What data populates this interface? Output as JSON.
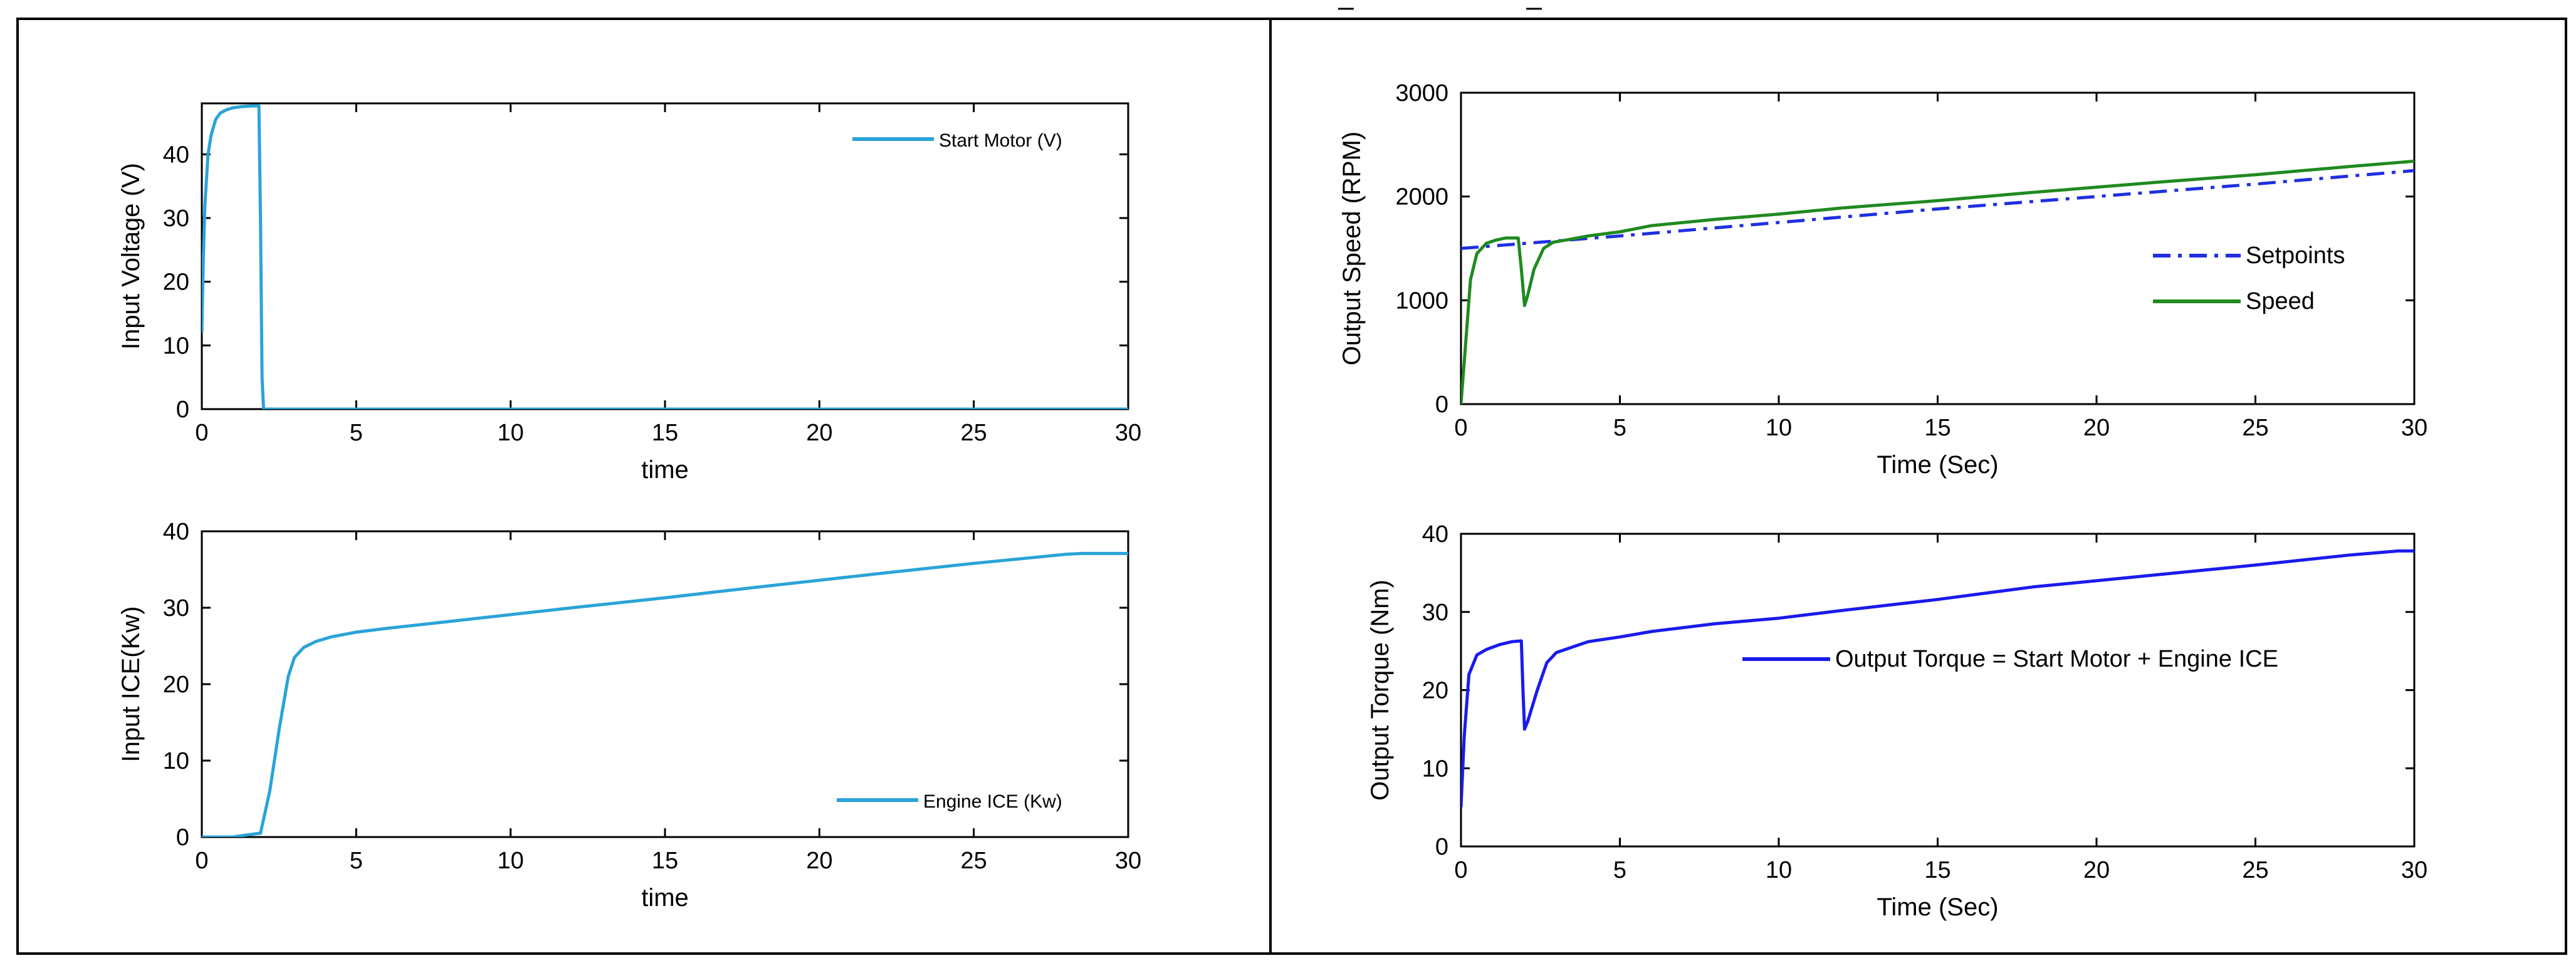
{
  "chart_data": [
    {
      "id": "voltage",
      "type": "line",
      "title": "",
      "xlabel": "time",
      "ylabel": "Input Voltage (V)",
      "xlim": [
        0,
        30
      ],
      "ylim": [
        0,
        48
      ],
      "xticks": [
        0,
        5,
        10,
        15,
        20,
        25,
        30
      ],
      "yticks": [
        0,
        10,
        20,
        30,
        40
      ],
      "legend_position": "top-right",
      "series": [
        {
          "name": "Start Motor (V)",
          "color": "#2aa3d8",
          "dash": "solid",
          "x": [
            0,
            0.05,
            0.1,
            0.2,
            0.3,
            0.45,
            0.6,
            0.8,
            1.0,
            1.3,
            1.6,
            1.85,
            1.9,
            1.95,
            2.0,
            30
          ],
          "y": [
            12,
            24,
            32,
            40,
            43,
            45.5,
            46.5,
            47,
            47.3,
            47.5,
            47.6,
            47.6,
            30,
            5,
            0,
            0
          ]
        }
      ]
    },
    {
      "id": "ice",
      "type": "line",
      "title": "",
      "xlabel": "time",
      "ylabel": "Input ICE(Kw)",
      "xlim": [
        0,
        30
      ],
      "ylim": [
        0,
        40
      ],
      "xticks": [
        0,
        5,
        10,
        15,
        20,
        25,
        30
      ],
      "yticks": [
        0,
        10,
        20,
        30,
        40
      ],
      "legend_position": "bottom-right",
      "series": [
        {
          "name": "Engine ICE (Kw)",
          "color": "#2aa3d8",
          "dash": "solid",
          "x": [
            0,
            1,
            1.5,
            1.9,
            2.2,
            2.5,
            2.8,
            3.0,
            3.3,
            3.7,
            4.2,
            5,
            6,
            8,
            10,
            12,
            15,
            18,
            20,
            22,
            25,
            28,
            28.5,
            30
          ],
          "y": [
            0,
            0,
            0.3,
            0.5,
            6,
            14,
            21,
            23.5,
            24.8,
            25.6,
            26.2,
            26.8,
            27.3,
            28.2,
            29.1,
            30,
            31.3,
            32.7,
            33.6,
            34.5,
            35.8,
            37,
            37.1,
            37.1
          ]
        }
      ]
    },
    {
      "id": "speed",
      "type": "line",
      "title": "",
      "xlabel": "Time (Sec)",
      "ylabel": "Output  Speed (RPM)",
      "xlim": [
        0,
        30
      ],
      "ylim": [
        0,
        3000
      ],
      "xticks": [
        0,
        5,
        10,
        15,
        20,
        25,
        30
      ],
      "yticks": [
        0,
        1000,
        2000,
        3000
      ],
      "legend_position": "right",
      "series": [
        {
          "name": "Setpoints",
          "color": "#1f2fe0",
          "dash": "dashdot",
          "x": [
            0,
            5,
            10,
            15,
            20,
            25,
            30
          ],
          "y": [
            1500,
            1620,
            1750,
            1880,
            2000,
            2120,
            2250
          ]
        },
        {
          "name": "Speed",
          "color": "#1f8a1f",
          "dash": "solid",
          "x": [
            0,
            0.1,
            0.3,
            0.5,
            0.8,
            1.1,
            1.4,
            1.8,
            1.9,
            2.0,
            2.1,
            2.3,
            2.6,
            2.9,
            3.3,
            4,
            5,
            6,
            8,
            10,
            12,
            15,
            18,
            20,
            22,
            25,
            28,
            30
          ],
          "y": [
            0,
            400,
            1200,
            1450,
            1550,
            1580,
            1600,
            1600,
            1300,
            950,
            1050,
            1300,
            1500,
            1560,
            1580,
            1620,
            1660,
            1720,
            1780,
            1830,
            1890,
            1960,
            2040,
            2090,
            2140,
            2210,
            2290,
            2340
          ]
        }
      ]
    },
    {
      "id": "torque",
      "type": "line",
      "title": "",
      "xlabel": "Time (Sec)",
      "ylabel": "Output Torque (Nm)",
      "xlim": [
        0,
        30
      ],
      "ylim": [
        0,
        40
      ],
      "xticks": [
        0,
        5,
        10,
        15,
        20,
        25,
        30
      ],
      "yticks": [
        0,
        10,
        20,
        30,
        40
      ],
      "legend_position": "right",
      "series": [
        {
          "name": "Output Torque = Start Motor + Engine ICE",
          "color": "#1a1aee",
          "dash": "solid",
          "x": [
            0,
            0.1,
            0.25,
            0.5,
            0.8,
            1.2,
            1.6,
            1.9,
            1.95,
            2.0,
            2.1,
            2.4,
            2.7,
            3.0,
            3.5,
            4,
            5,
            6,
            8,
            10,
            12,
            15,
            18,
            20,
            22,
            25,
            28,
            29.5,
            30
          ],
          "y": [
            5,
            14,
            22,
            24.5,
            25.2,
            25.8,
            26.2,
            26.3,
            20,
            15,
            16,
            20,
            23.5,
            24.8,
            25.5,
            26.2,
            26.8,
            27.5,
            28.5,
            29.2,
            30.2,
            31.6,
            33.2,
            34.0,
            34.8,
            36.0,
            37.3,
            37.8,
            37.8
          ]
        }
      ]
    }
  ]
}
